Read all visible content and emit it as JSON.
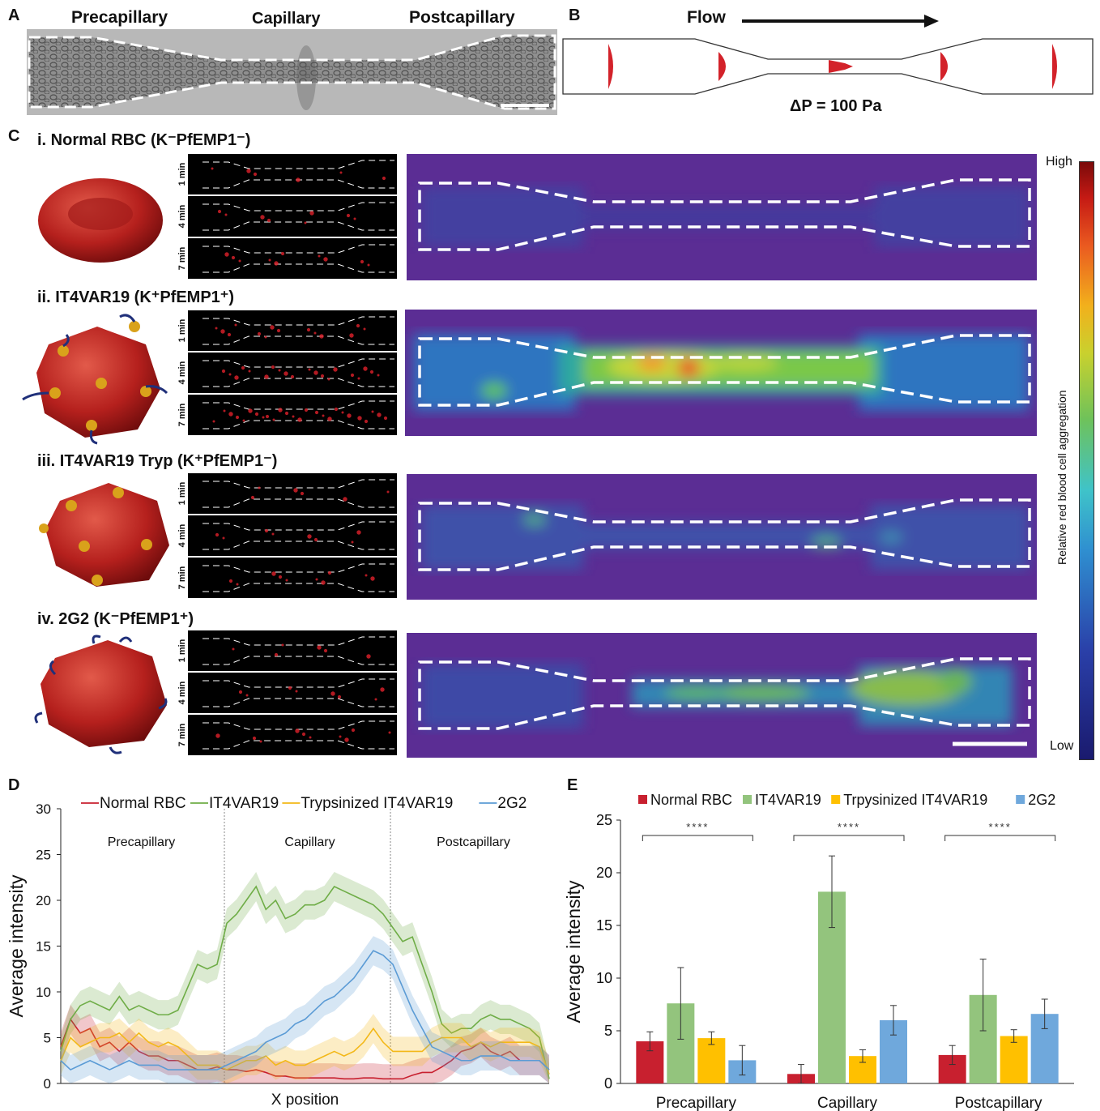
{
  "panels": {
    "A": {
      "letter": "A",
      "labels": [
        "Precapillary",
        "Capillary",
        "Postcapillary"
      ]
    },
    "B": {
      "letter": "B",
      "flow_label": "Flow",
      "pressure_label": "ΔP = 100 Pa"
    },
    "C": {
      "letter": "C",
      "colorbar": {
        "high": "High",
        "low": "Low",
        "title": "Relative red blood cell aggregation"
      },
      "time_labels": [
        "1 min",
        "4 min",
        "7 min"
      ],
      "rows": [
        {
          "title": "i. Normal RBC (K⁻PfEMP1⁻)"
        },
        {
          "title": "ii. IT4VAR19 (K⁺PfEMP1⁺)"
        },
        {
          "title": "iii. IT4VAR19 Tryp (K⁺PfEMP1⁻)"
        },
        {
          "title": "iv. 2G2 (K⁻PfEMP1⁺)"
        }
      ]
    },
    "D": {
      "letter": "D"
    },
    "E": {
      "letter": "E"
    }
  },
  "colors": {
    "normal": "#c8202f",
    "it4var19": "#6fad47",
    "tryp": "#f3b818",
    "g2": "#5b9bd5",
    "heat_bg": "#5b2d94"
  },
  "chart_data": [
    {
      "id": "D",
      "type": "line",
      "xlabel": "X position",
      "ylabel": "Average intensity",
      "ylim": [
        0,
        30
      ],
      "yticks": [
        0,
        5,
        10,
        15,
        20,
        25,
        30
      ],
      "regions": [
        "Precapillary",
        "Capillary",
        "Postcapillary"
      ],
      "legend_position": "top",
      "x": [
        0,
        2,
        4,
        6,
        8,
        10,
        12,
        14,
        16,
        18,
        20,
        22,
        24,
        26,
        28,
        30,
        32,
        34,
        36,
        38,
        40,
        42,
        44,
        46,
        48,
        50,
        52,
        54,
        56,
        58,
        60,
        62,
        64,
        66,
        68,
        70,
        72,
        74,
        76,
        78,
        80,
        82,
        84,
        86,
        88,
        90,
        92,
        94,
        96,
        98,
        100
      ],
      "series": [
        {
          "name": "Normal RBC",
          "color": "#c8202f",
          "values": [
            4,
            7,
            5.5,
            6,
            4,
            4.5,
            3.5,
            4.5,
            3.5,
            3,
            3,
            2.5,
            2.5,
            2,
            1.5,
            1.5,
            1.8,
            1.5,
            1.5,
            1.3,
            1.5,
            1.2,
            0.8,
            0.8,
            0.6,
            0.6,
            0.6,
            0.6,
            0.6,
            0.5,
            0.5,
            0.6,
            0.6,
            0.5,
            0.5,
            0.5,
            0.9,
            1.2,
            1.2,
            1.8,
            2.5,
            3.5,
            3.8,
            4.5,
            3.5,
            3,
            3.5,
            2.5,
            2.5,
            2.5,
            1.5
          ]
        },
        {
          "name": "IT4VAR19",
          "color": "#6fad47",
          "values": [
            3.5,
            7,
            8.5,
            9,
            8.5,
            8,
            9.5,
            8,
            8.5,
            8,
            7.5,
            7.5,
            8,
            10.5,
            13,
            12.5,
            13,
            17.5,
            18.5,
            20,
            21.5,
            19,
            20,
            18,
            18.5,
            19.5,
            19.5,
            20,
            21.5,
            21,
            20.5,
            20,
            19.5,
            18.5,
            17,
            15.5,
            16,
            13,
            10,
            6.5,
            5.5,
            6,
            6,
            7,
            7.5,
            7,
            7,
            6.5,
            6,
            5,
            0.5
          ]
        },
        {
          "name": "Trypsinized IT4VAR19",
          "color": "#f3b818",
          "values": [
            2.5,
            5,
            4,
            4.5,
            5,
            5,
            5.5,
            4.5,
            5.5,
            4.5,
            4,
            4.5,
            4,
            3,
            2,
            2,
            2,
            1.5,
            2,
            2.5,
            2.5,
            3,
            2,
            2.5,
            2,
            2,
            2.5,
            3,
            3.5,
            3,
            3.5,
            4.5,
            6,
            4.5,
            3.5,
            3.5,
            3.5,
            3.5,
            4.5,
            5,
            5,
            5,
            4,
            4.5,
            4,
            4.5,
            4.5,
            4.5,
            4.5,
            4,
            1
          ]
        },
        {
          "name": "2G2",
          "color": "#5b9bd5",
          "values": [
            2.5,
            1.5,
            2,
            2.5,
            2,
            1.5,
            2,
            2.5,
            2,
            2,
            2,
            1.5,
            1.5,
            1.5,
            1.5,
            1.5,
            1.5,
            2,
            2.5,
            3,
            3.5,
            4.5,
            5,
            5.5,
            6.5,
            7,
            8,
            9,
            9.5,
            10.5,
            11.5,
            13,
            14.5,
            14,
            13,
            10.5,
            8,
            6,
            4,
            3.5,
            3,
            2.5,
            2.5,
            3,
            3,
            3,
            2.5,
            2.5,
            2.5,
            2.5,
            1.5
          ]
        }
      ]
    },
    {
      "id": "E",
      "type": "bar",
      "ylabel": "Average intensity",
      "ylim": [
        0,
        25
      ],
      "yticks": [
        0,
        5,
        10,
        15,
        20,
        25
      ],
      "categories": [
        "Precapillary",
        "Capillary",
        "Postcapillary"
      ],
      "significance": "****",
      "legend_position": "top",
      "series": [
        {
          "name": "Normal RBC",
          "color": "#c8202f",
          "values": [
            4.0,
            0.9,
            2.7
          ],
          "errors": [
            0.9,
            0.9,
            0.9
          ]
        },
        {
          "name": "IT4VAR19",
          "color": "#93c47d",
          "values": [
            7.6,
            18.2,
            8.4
          ],
          "errors": [
            3.4,
            3.4,
            3.4
          ]
        },
        {
          "name": "Trpysinized IT4VAR19",
          "color": "#ffc000",
          "values": [
            4.3,
            2.6,
            4.5
          ],
          "errors": [
            0.6,
            0.6,
            0.6
          ]
        },
        {
          "name": "2G2",
          "color": "#6fa8dc",
          "values": [
            2.2,
            6.0,
            6.6
          ],
          "errors": [
            1.4,
            1.4,
            1.4
          ]
        }
      ]
    }
  ]
}
